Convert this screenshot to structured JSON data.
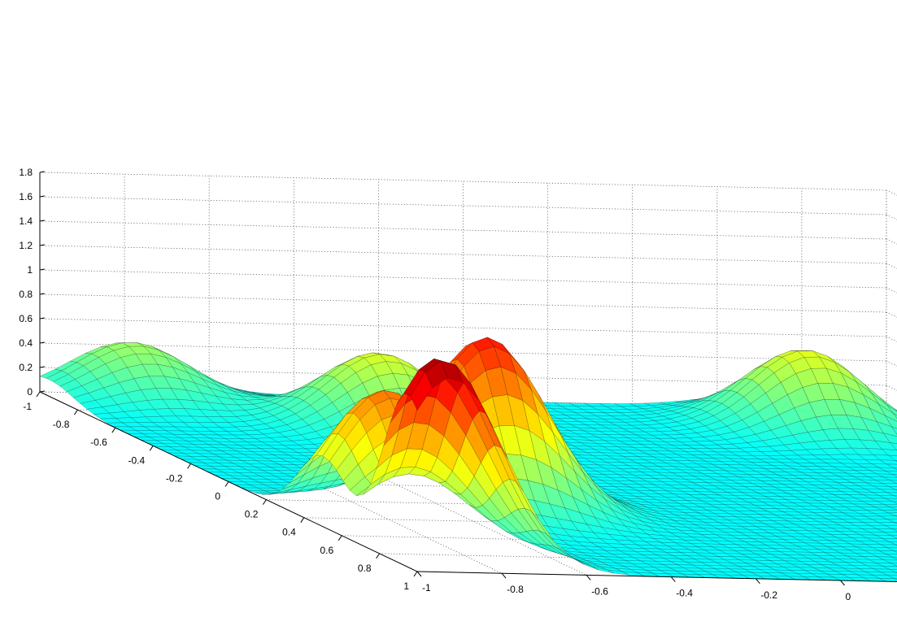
{
  "chart_data": {
    "type": "surface",
    "title": "",
    "xlabel": "",
    "ylabel": "",
    "zlabel": "",
    "xlim": [
      -1,
      1
    ],
    "ylim": [
      -1,
      1
    ],
    "zlim": [
      0,
      1.8
    ],
    "grid": true,
    "colormap": "jet",
    "x_ticks": [
      "-1",
      "-0.8",
      "-0.6",
      "-0.4",
      "-0.2",
      "0",
      "0.2",
      "0.4",
      "0.6",
      "0.8",
      "1"
    ],
    "y_ticks": [
      "-1",
      "-0.8",
      "-0.6",
      "-0.4",
      "-0.2",
      "0",
      "0.2",
      "0.4",
      "0.6",
      "0.8",
      "1"
    ],
    "z_ticks": [
      "0",
      "0.2",
      "0.4",
      "0.6",
      "0.8",
      "1",
      "1.2",
      "1.4",
      "1.6",
      "1.8"
    ],
    "peaks": [
      {
        "x": 0.95,
        "y": -0.92,
        "height": 1.72
      },
      {
        "x": 0.5,
        "y": -0.85,
        "height": 1.12
      },
      {
        "x": 0.25,
        "y": -0.5,
        "height": 1.4
      },
      {
        "x": -0.65,
        "y": -0.35,
        "height": 0.62
      },
      {
        "x": -0.75,
        "y": 0.7,
        "height": 0.65
      },
      {
        "x": 0.4,
        "y": 0.8,
        "height": 0.62
      },
      {
        "x": -0.95,
        "y": -0.8,
        "height": 0.45
      }
    ]
  }
}
